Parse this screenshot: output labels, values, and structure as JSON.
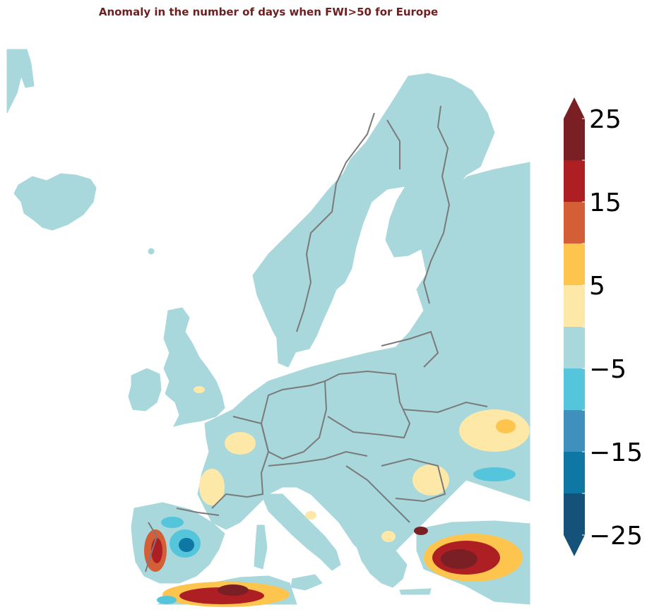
{
  "title": "Anomaly in the number of days when FWI>50 for Europe",
  "colors": {
    "title": "#6e1f1f",
    "land_neutral": "#a8d8dc",
    "borders": "#7a7a7a",
    "sea": "#ffffff"
  },
  "colorbar": {
    "levels": [
      -25,
      -20,
      -15,
      -10,
      -5,
      0,
      5,
      10,
      15,
      20,
      25
    ],
    "band_colors": [
      "#15527a",
      "#0f77a3",
      "#4090be",
      "#55c5db",
      "#a8d8dc",
      "#fde8a8",
      "#fdc54d",
      "#d45f37",
      "#ad1f23",
      "#7a1f24"
    ],
    "extend_low_color": "#15527a",
    "extend_high_color": "#7a1f24",
    "tick_labels": [
      "25",
      "15",
      "5",
      "−5",
      "−15",
      "−25"
    ]
  }
}
